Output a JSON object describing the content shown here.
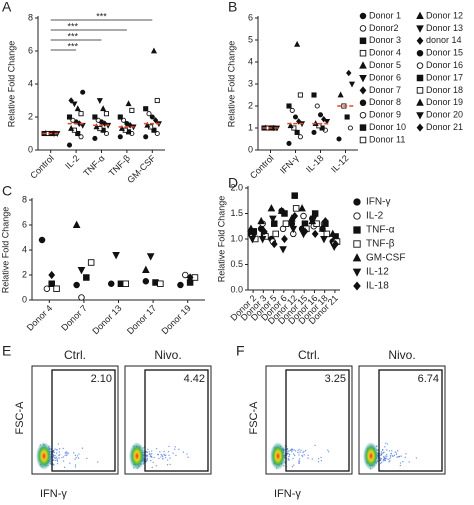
{
  "chart_data": [
    {
      "type": "strip",
      "panel": "A",
      "ylabel": "Relative Fold Change",
      "categories": [
        "Control",
        "IL-2",
        "TNF-α",
        "TNF-β",
        "GM-CSF"
      ],
      "points": [
        [
          1,
          1,
          1,
          1,
          1,
          1,
          1,
          1,
          1,
          1
        ],
        [
          0.3,
          0.8,
          1.0,
          1.2,
          1.3,
          1.5,
          1.6,
          1.7,
          1.8,
          2.0,
          2.2,
          2.5,
          2.8,
          3.0,
          3.5
        ],
        [
          0.7,
          1.0,
          1.2,
          1.3,
          1.4,
          1.5,
          1.6,
          1.7,
          1.8,
          2.0,
          2.2,
          2.5,
          3.0
        ],
        [
          0.8,
          1.0,
          1.1,
          1.2,
          1.3,
          1.4,
          1.5,
          1.6,
          1.8,
          2.0,
          2.4,
          2.8
        ],
        [
          0.8,
          1.0,
          1.2,
          1.4,
          1.5,
          1.6,
          1.8,
          2.0,
          2.2,
          2.5,
          3.0,
          6.0
        ]
      ],
      "medians": [
        1,
        1.6,
        1.5,
        1.4,
        1.6
      ],
      "median_color": "#e8452c",
      "significance": [
        {
          "groups": [
            "Control",
            "GM-CSF"
          ],
          "label": "***"
        },
        {
          "groups": [
            "Control",
            "TNF-β"
          ],
          "label": "***"
        },
        {
          "groups": [
            "Control",
            "TNF-α"
          ],
          "label": "***"
        },
        {
          "groups": [
            "Control",
            "IL-2"
          ],
          "label": "***"
        }
      ],
      "ylim": [
        0,
        8
      ],
      "yticks": [
        0,
        2,
        4,
        6,
        8
      ]
    },
    {
      "type": "strip",
      "panel": "B",
      "ylabel": "Relative Fold Change",
      "categories": [
        "Control",
        "IFN-γ",
        "IL-18",
        "IL-12"
      ],
      "points": [
        [
          1,
          1,
          1,
          1,
          1,
          1,
          1,
          1,
          1,
          1
        ],
        [
          0.3,
          0.6,
          0.8,
          1.0,
          1.1,
          1.2,
          1.3,
          1.5,
          1.8,
          2.0,
          2.5,
          4.8
        ],
        [
          0.8,
          0.9,
          1.0,
          1.1,
          1.2,
          1.3,
          1.4,
          1.6,
          2.0,
          2.5
        ],
        [
          0.5,
          1.0,
          1.5,
          2.0,
          2.5,
          3.0,
          3.5
        ]
      ],
      "medians": [
        1,
        1.2,
        1.2,
        2.0
      ],
      "median_color": "#e8452c",
      "legend": [
        "Donor 1",
        "Donor2",
        "Donor 3",
        "Donor 4",
        "Donor 5",
        "Donor 6",
        "Donor 7",
        "Donor 8",
        "Donor 9",
        "Donor 10",
        "Donor 11",
        "Donor 12",
        "Donor 13",
        "donor 14",
        "Donor 15",
        "Donor 16",
        "Donor 17",
        "Donor 18",
        "Donor 19",
        "Donor 20",
        "Donor 21"
      ],
      "ylim": [
        0,
        6
      ],
      "yticks": [
        0,
        1,
        2,
        3,
        4,
        5,
        6
      ]
    },
    {
      "type": "dot",
      "panel": "C",
      "ylabel": "Relative Fold Change",
      "categories": [
        "Donor 4",
        "Donor 7",
        "Donor 13",
        "Donor 17",
        "Donor 19"
      ],
      "series": [
        {
          "name": "IFN-γ",
          "values": [
            4.8,
            1.2,
            1.3,
            1.5,
            1.2
          ]
        },
        {
          "name": "IL-2",
          "values": [
            0.9,
            0.2,
            null,
            null,
            2.0
          ]
        },
        {
          "name": "TNF-α",
          "values": [
            1.3,
            1.8,
            1.3,
            1.4,
            1.4
          ]
        },
        {
          "name": "TNF-β",
          "values": [
            0.9,
            3.0,
            1.3,
            1.3,
            1.8
          ]
        },
        {
          "name": "GM-CSF",
          "values": [
            null,
            6.0,
            null,
            2.4,
            null
          ]
        },
        {
          "name": "IL-12",
          "values": [
            null,
            2.4,
            3.6,
            3.5,
            null
          ]
        },
        {
          "name": "IL-18",
          "values": [
            2.0,
            null,
            null,
            null,
            1.8
          ]
        }
      ],
      "ylim": [
        0,
        8
      ],
      "yticks": [
        0,
        2,
        4,
        6,
        8
      ]
    },
    {
      "type": "dot",
      "panel": "D",
      "ylabel": "Relative Fold Change",
      "categories": [
        "Donor 2",
        "Donor 3",
        "Donor 5",
        "Donor 6",
        "Donor 12",
        "Donor 15",
        "Donor 16",
        "Donor 18",
        "Donor 21"
      ],
      "series": [
        {
          "name": "IFN-γ",
          "values": [
            1.1,
            1.2,
            1.0,
            1.55,
            1.3,
            1.2,
            1.4,
            1.2,
            0.95
          ]
        },
        {
          "name": "IL-2",
          "values": [
            1.05,
            1.3,
            0.95,
            1.2,
            1.1,
            1.45,
            1.25,
            1.3,
            0.9
          ]
        },
        {
          "name": "TNF-α",
          "values": [
            1.15,
            1.1,
            1.3,
            1.5,
            1.85,
            1.3,
            1.5,
            1.3,
            1.05
          ]
        },
        {
          "name": "TNF-β",
          "values": [
            1.0,
            1.05,
            1.1,
            1.3,
            1.6,
            1.2,
            1.3,
            1.1,
            0.95
          ]
        },
        {
          "name": "GM-CSF",
          "values": [
            1.2,
            1.35,
            1.6,
            1.55,
            1.4,
            1.6,
            1.35,
            1.2,
            1.1
          ]
        },
        {
          "name": "IL-12",
          "values": [
            1.0,
            1.0,
            1.4,
            0.8,
            1.2,
            1.1,
            1.4,
            1.0,
            0.85
          ]
        },
        {
          "name": "IL-18",
          "values": [
            1.1,
            1.15,
            0.9,
            1.0,
            1.45,
            1.15,
            1.1,
            1.35,
            0.9
          ]
        }
      ],
      "legend": true,
      "ylim": [
        0,
        2
      ],
      "yticks": [
        {
          "value": 0,
          "label": "0.0"
        },
        {
          "value": 0.5,
          "label": "0.5"
        },
        {
          "value": 1,
          "label": "1.0"
        },
        {
          "value": 1.5,
          "label": "1.5"
        },
        {
          "value": 2,
          "label": "2.0"
        }
      ]
    }
  ],
  "flow_panels": [
    {
      "panel": "E",
      "xlabel": "IFN-γ",
      "ylabel": "FSC-A",
      "plots": [
        {
          "title": "Ctrl.",
          "gate": "2.10"
        },
        {
          "title": "Nivo.",
          "gate": "4.42"
        }
      ]
    },
    {
      "panel": "F",
      "xlabel": "IFN-γ",
      "ylabel": "FSC-A",
      "plots": [
        {
          "title": "Ctrl.",
          "gate": "3.25"
        },
        {
          "title": "Nivo.",
          "gate": "6.74"
        }
      ]
    }
  ]
}
